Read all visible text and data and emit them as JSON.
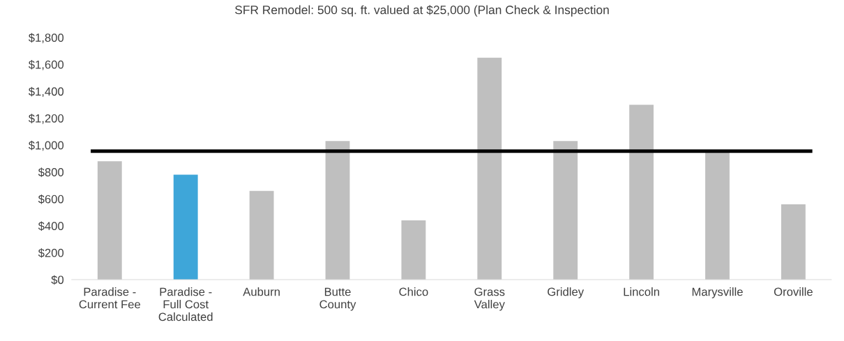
{
  "chart_data": {
    "type": "bar",
    "title": "SFR Remodel: 500 sq. ft. valued at $25,000 (Plan Check & Inspection",
    "categories": [
      "Paradise -\nCurrent Fee",
      "Paradise -\nFull Cost\nCalculated",
      "Auburn",
      "Butte\nCounty",
      "Chico",
      "Grass\nValley",
      "Gridley",
      "Lincoln",
      "Marysville",
      "Oroville"
    ],
    "values": [
      880,
      780,
      660,
      1030,
      440,
      1650,
      1030,
      1300,
      950,
      560
    ],
    "colors": [
      "#bfbfbf",
      "#3ea6d9",
      "#bfbfbf",
      "#bfbfbf",
      "#bfbfbf",
      "#bfbfbf",
      "#bfbfbf",
      "#bfbfbf",
      "#bfbfbf",
      "#bfbfbf"
    ],
    "ylim": [
      0,
      1800
    ],
    "yticks": [
      {
        "value": 0,
        "label": "$0"
      },
      {
        "value": 200,
        "label": "$200"
      },
      {
        "value": 400,
        "label": "$400"
      },
      {
        "value": 600,
        "label": "$600"
      },
      {
        "value": 800,
        "label": "$800"
      },
      {
        "value": 1000,
        "label": "$1,000"
      },
      {
        "value": 1200,
        "label": "$1,200"
      },
      {
        "value": 1400,
        "label": "$1,400"
      },
      {
        "value": 1600,
        "label": "$1,600"
      },
      {
        "value": 1800,
        "label": "$1,800"
      }
    ],
    "ref_lines": [
      {
        "axis": "y",
        "value": 955,
        "color": "#000000"
      }
    ],
    "grid": false,
    "legend": false
  }
}
